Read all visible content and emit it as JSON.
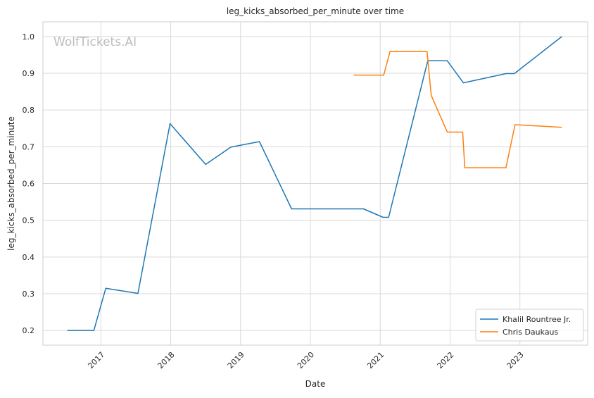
{
  "chart_data": {
    "type": "line",
    "title": "leg_kicks_absorbed_per_minute over time",
    "xlabel": "Date",
    "ylabel": "leg_kicks_absorbed_per_minute",
    "watermark": "WolfTickets.AI",
    "xlim": [
      2016.17,
      2023.97
    ],
    "ylim": [
      0.16,
      1.04
    ],
    "x_ticks": [
      2017,
      2018,
      2019,
      2020,
      2021,
      2022,
      2023
    ],
    "x_tick_labels": [
      "2017",
      "2018",
      "2019",
      "2020",
      "2021",
      "2022",
      "2023"
    ],
    "y_ticks": [
      0.2,
      0.3,
      0.4,
      0.5,
      0.6,
      0.7,
      0.8,
      0.9,
      1.0
    ],
    "y_tick_labels": [
      "0.2",
      "0.3",
      "0.4",
      "0.5",
      "0.6",
      "0.7",
      "0.8",
      "0.9",
      "1.0"
    ],
    "grid": true,
    "legend_position": "bottom-right",
    "series": [
      {
        "name": "Khalil Rountree Jr.",
        "color": "#1f77b4",
        "x": [
          2016.52,
          2016.9,
          2017.07,
          2017.53,
          2017.99,
          2018.5,
          2018.86,
          2019.27,
          2019.73,
          2020.76,
          2021.04,
          2021.12,
          2021.68,
          2021.96,
          2022.19,
          2022.8,
          2022.92,
          2023.6
        ],
        "y": [
          0.2,
          0.2,
          0.315,
          0.301,
          0.763,
          0.652,
          0.699,
          0.714,
          0.531,
          0.531,
          0.508,
          0.508,
          0.934,
          0.934,
          0.874,
          0.899,
          0.899,
          1.0
        ]
      },
      {
        "name": "Chris Daukaus",
        "color": "#ff7f0e",
        "x": [
          2020.62,
          2021.05,
          2021.14,
          2021.67,
          2021.73,
          2021.96,
          2022.18,
          2022.21,
          2022.8,
          2022.93,
          2023.6
        ],
        "y": [
          0.895,
          0.895,
          0.959,
          0.959,
          0.84,
          0.74,
          0.74,
          0.643,
          0.643,
          0.76,
          0.753
        ]
      }
    ]
  }
}
